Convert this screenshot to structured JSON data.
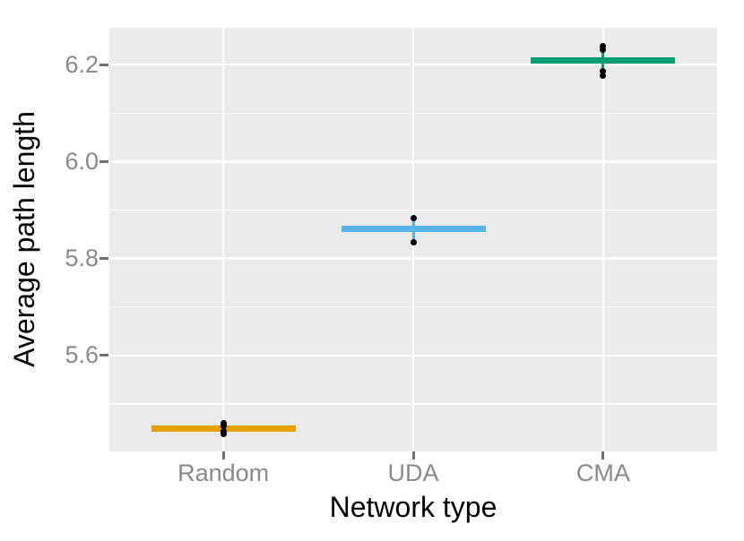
{
  "chart_data": {
    "type": "scatter",
    "variant": "crossbar-with-jittered-points",
    "title": "",
    "xlabel": "Network type",
    "ylabel": "Average path length",
    "categories": [
      "Random",
      "UDA",
      "CMA"
    ],
    "y_tick_labels": [
      "6.2",
      "6.0",
      "5.8",
      "5.6"
    ],
    "y_ticks": [
      6.2,
      6.0,
      5.8,
      5.6
    ],
    "y_minor_ticks": [
      6.1,
      5.9,
      5.7,
      5.5
    ],
    "ylim": [
      5.402,
      6.276
    ],
    "grid": "on",
    "legend": "none",
    "series": [
      {
        "name": "Random",
        "color": "#E69F00",
        "mean": 5.449,
        "points": [
          5.461,
          5.455,
          5.443,
          5.438
        ]
      },
      {
        "name": "UDA",
        "color": "#56B4E9",
        "mean": 5.861,
        "points": [
          5.884,
          5.834
        ]
      },
      {
        "name": "CMA",
        "color": "#009E73",
        "mean": 6.208,
        "points": [
          6.239,
          6.231,
          6.187,
          6.178
        ]
      }
    ],
    "colors": {
      "panel_background": "#EBEBEB",
      "gridline": "#FFFFFF",
      "tick_mark": "#707070",
      "tick_label": "#8A8A8A",
      "axis_title": "#000000",
      "point": "#000000"
    }
  }
}
